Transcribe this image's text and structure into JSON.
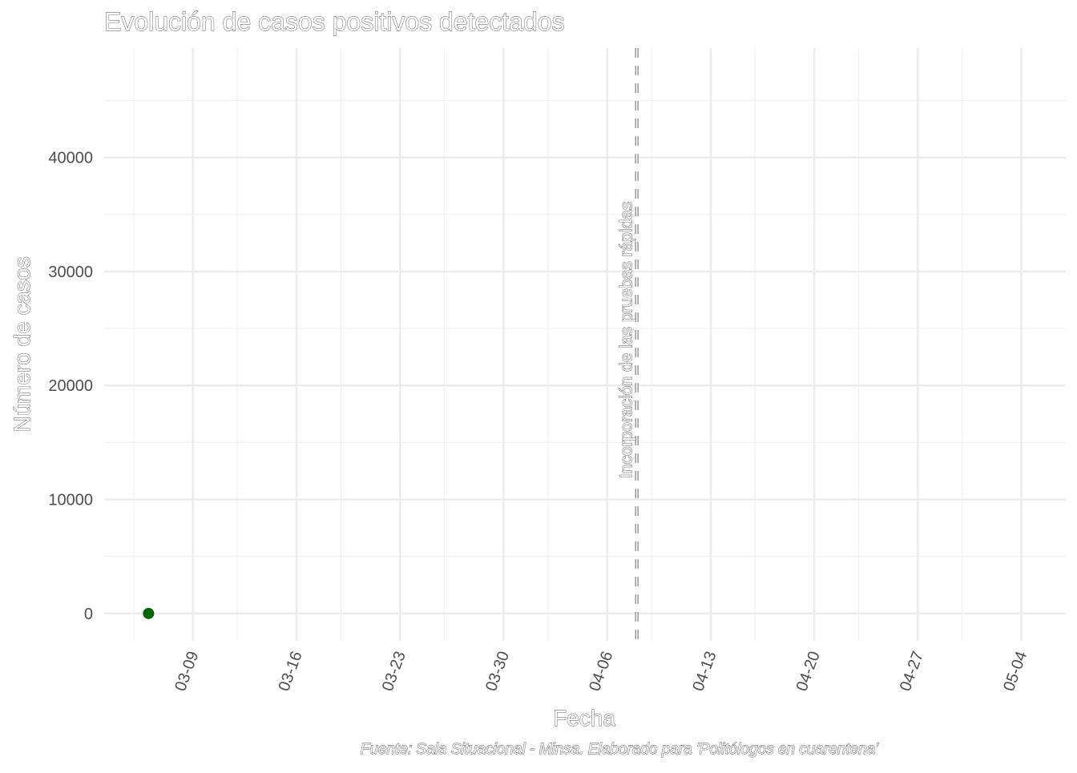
{
  "chart_data": {
    "type": "scatter",
    "title": "Evolución de casos positivos detectados",
    "xlabel": "Fecha",
    "ylabel": "Número de casos",
    "caption": "Fuente: Sala Situacional - Minsa. Elaborado para 'Politólogos en cuarentena'",
    "x_axis_type": "date",
    "xlim": [
      "2020-03-03",
      "2020-05-07"
    ],
    "ylim": [
      -2400,
      49600
    ],
    "x_ticks": [
      {
        "date": "2020-03-09",
        "label": "03-09"
      },
      {
        "date": "2020-03-16",
        "label": "03-16"
      },
      {
        "date": "2020-03-23",
        "label": "03-23"
      },
      {
        "date": "2020-03-30",
        "label": "03-30"
      },
      {
        "date": "2020-04-06",
        "label": "04-06"
      },
      {
        "date": "2020-04-13",
        "label": "04-13"
      },
      {
        "date": "2020-04-20",
        "label": "04-20"
      },
      {
        "date": "2020-04-27",
        "label": "04-27"
      },
      {
        "date": "2020-05-04",
        "label": "05-04"
      }
    ],
    "y_ticks": [
      0,
      10000,
      20000,
      30000,
      40000
    ],
    "grid": true,
    "series": [
      {
        "color": "#006400",
        "points": [
          {
            "x": "2020-03-06",
            "y": 0
          }
        ]
      }
    ],
    "annotations": [
      {
        "type": "vline",
        "x": "2020-04-08",
        "linestyle": "dashed",
        "label": "Incorporación de las pruebas rápidas"
      }
    ]
  }
}
